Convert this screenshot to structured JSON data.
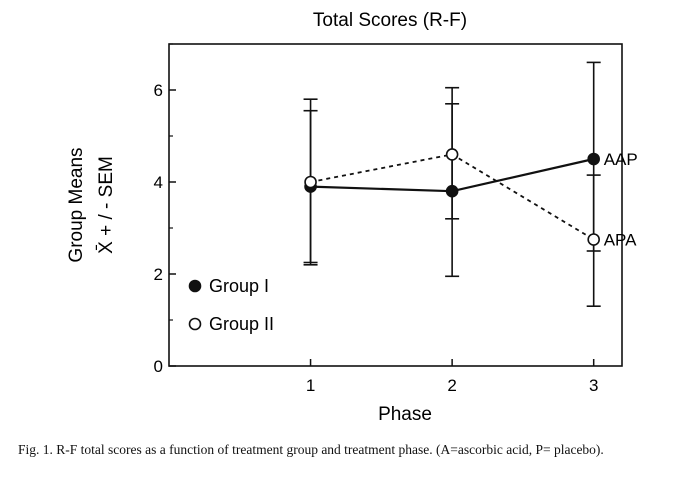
{
  "chart_data": {
    "type": "line",
    "title": "Total Scores (R-F)",
    "xlabel": "Phase",
    "ylabel_line1": "Group Means",
    "ylabel_line2": "X̄ + / - SEM",
    "x": [
      1,
      2,
      3
    ],
    "xlim": [
      0,
      3.2
    ],
    "ylim": [
      0,
      7
    ],
    "xticks": [
      "1",
      "2",
      "3"
    ],
    "yticks": [
      "0",
      "2",
      "4",
      "6"
    ],
    "ytick_values": [
      0,
      2,
      4,
      6
    ],
    "grid": false,
    "legend_position": "bottom-left",
    "series": [
      {
        "name": "Group I",
        "marker": "filled-circle",
        "line": "solid",
        "values": [
          3.9,
          3.8,
          4.5
        ],
        "err_low": [
          2.2,
          1.95,
          2.5
        ],
        "err_high": [
          5.55,
          5.7,
          6.6
        ],
        "end_label": "AAP"
      },
      {
        "name": "Group II",
        "marker": "open-circle",
        "line": "dashed",
        "values": [
          4.0,
          4.6,
          2.75
        ],
        "err_low": [
          2.25,
          3.2,
          1.3
        ],
        "err_high": [
          5.8,
          6.05,
          4.15
        ],
        "end_label": "APA"
      }
    ]
  },
  "caption": "Fig. 1. R-F total scores as a function of treatment group and treatment phase. (A=ascorbic acid, P= placebo)."
}
